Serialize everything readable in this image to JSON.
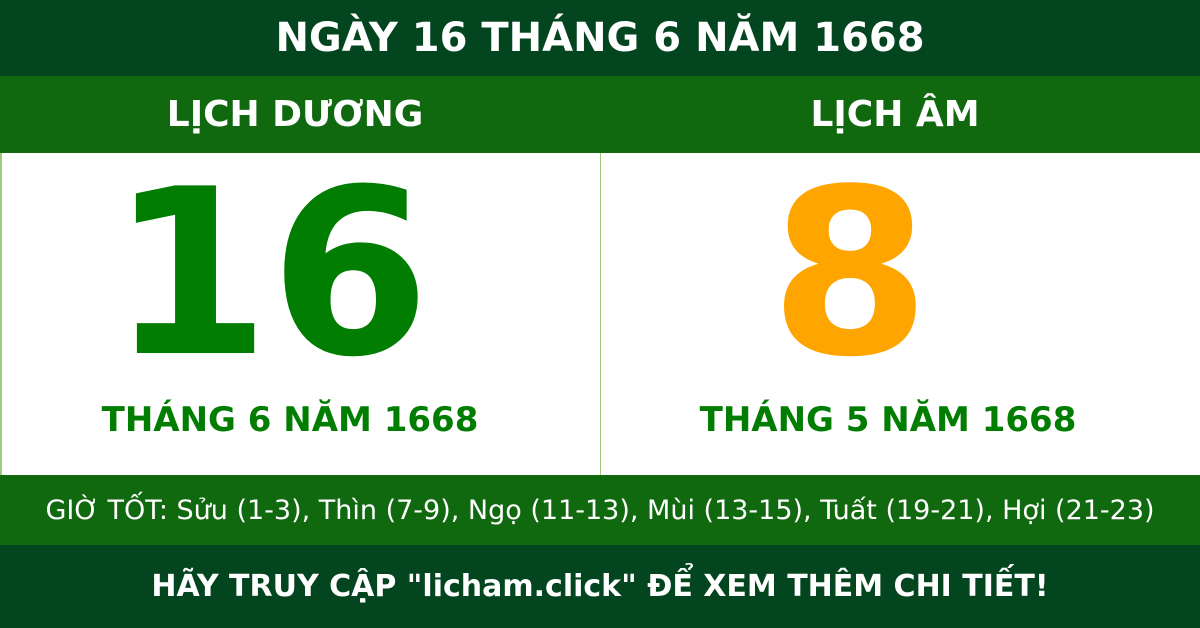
{
  "title": "NGÀY 16 THÁNG 6 NĂM 1668",
  "solar": {
    "heading": "LỊCH DƯƠNG",
    "day": "16",
    "month_year": "THÁNG 6 NĂM 1668"
  },
  "lunar": {
    "heading": "LỊCH ÂM",
    "day": "8",
    "month_year": "THÁNG 5 NĂM 1668"
  },
  "good_hours": "GIỜ TỐT: Sửu (1-3), Thìn (7-9), Ngọ (11-13), Mùi (13-15), Tuất (19-21), Hợi (21-23)",
  "footer": "HÃY TRUY CẬP \"licham.click\" ĐỂ XEM THÊM CHI TIẾT!",
  "colors": {
    "dark_green": "#03451f",
    "band_green": "#10690f",
    "solar_green": "#017d02",
    "lunar_orange": "#ffa500"
  }
}
